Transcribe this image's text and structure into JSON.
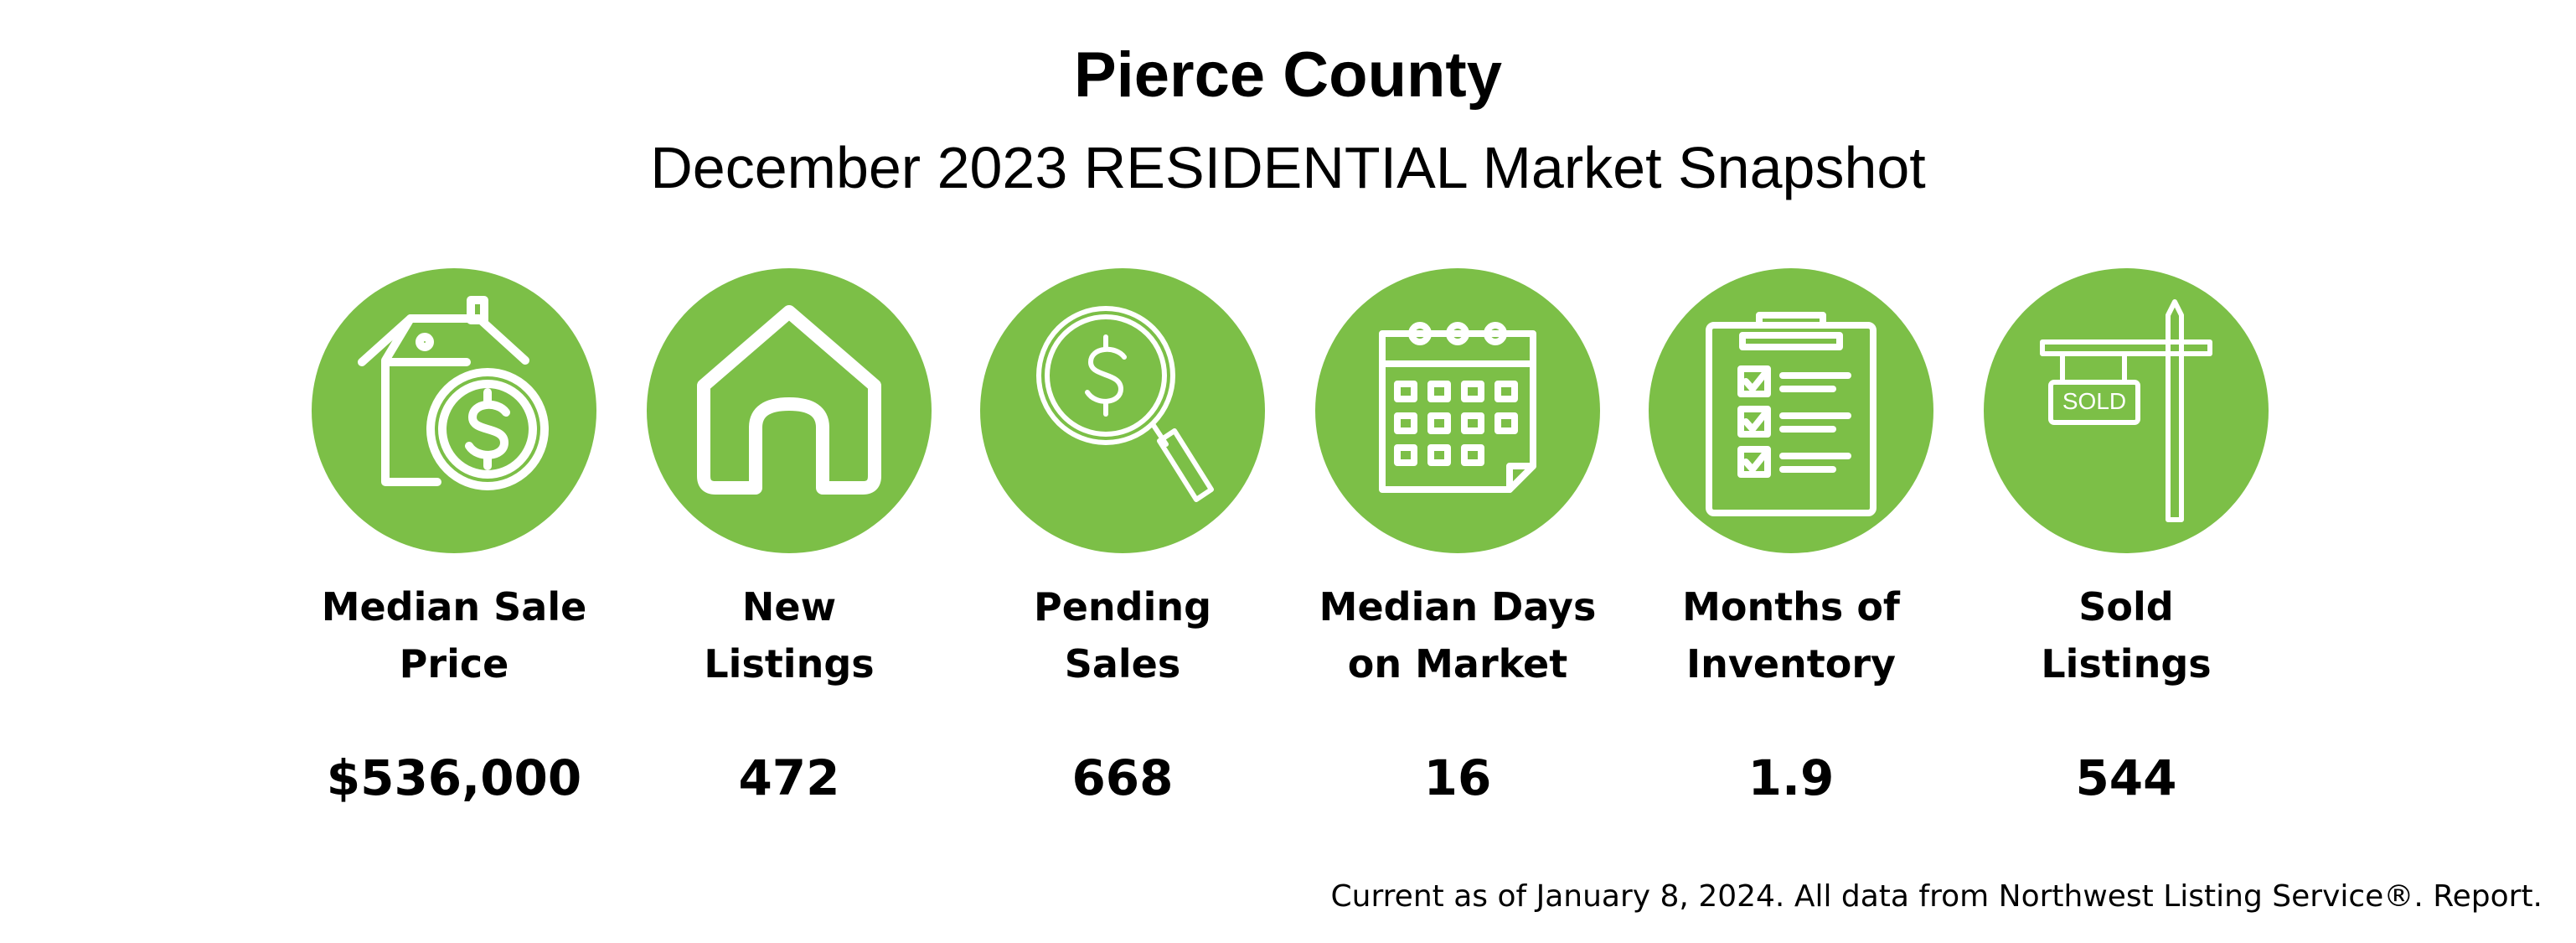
{
  "header": {
    "title": "Pierce County",
    "subtitle": "December 2023 RESIDENTIAL Market Snapshot"
  },
  "colors": {
    "accent": "#7cbf47",
    "text": "#000000",
    "background": "#ffffff"
  },
  "stats": [
    {
      "icon": "house-dollar-icon",
      "label_line1": "Median Sale",
      "label_line2": "Price",
      "value": "$536,000"
    },
    {
      "icon": "house-icon",
      "label_line1": "New",
      "label_line2": "Listings",
      "value": "472"
    },
    {
      "icon": "magnifier-dollar-icon",
      "label_line1": "Pending",
      "label_line2": "Sales",
      "value": "668"
    },
    {
      "icon": "calendar-icon",
      "label_line1": "Median Days",
      "label_line2": "on Market",
      "value": "16"
    },
    {
      "icon": "clipboard-checklist-icon",
      "label_line1": "Months of",
      "label_line2": "Inventory",
      "value": "1.9"
    },
    {
      "icon": "sold-sign-icon",
      "label_line1": "Sold",
      "label_line2": "Listings",
      "value": "544",
      "sign_text": "SOLD"
    }
  ],
  "footer": {
    "text": "Current as of January 8, 2024. All data from Northwest Listing Service®. Report."
  }
}
